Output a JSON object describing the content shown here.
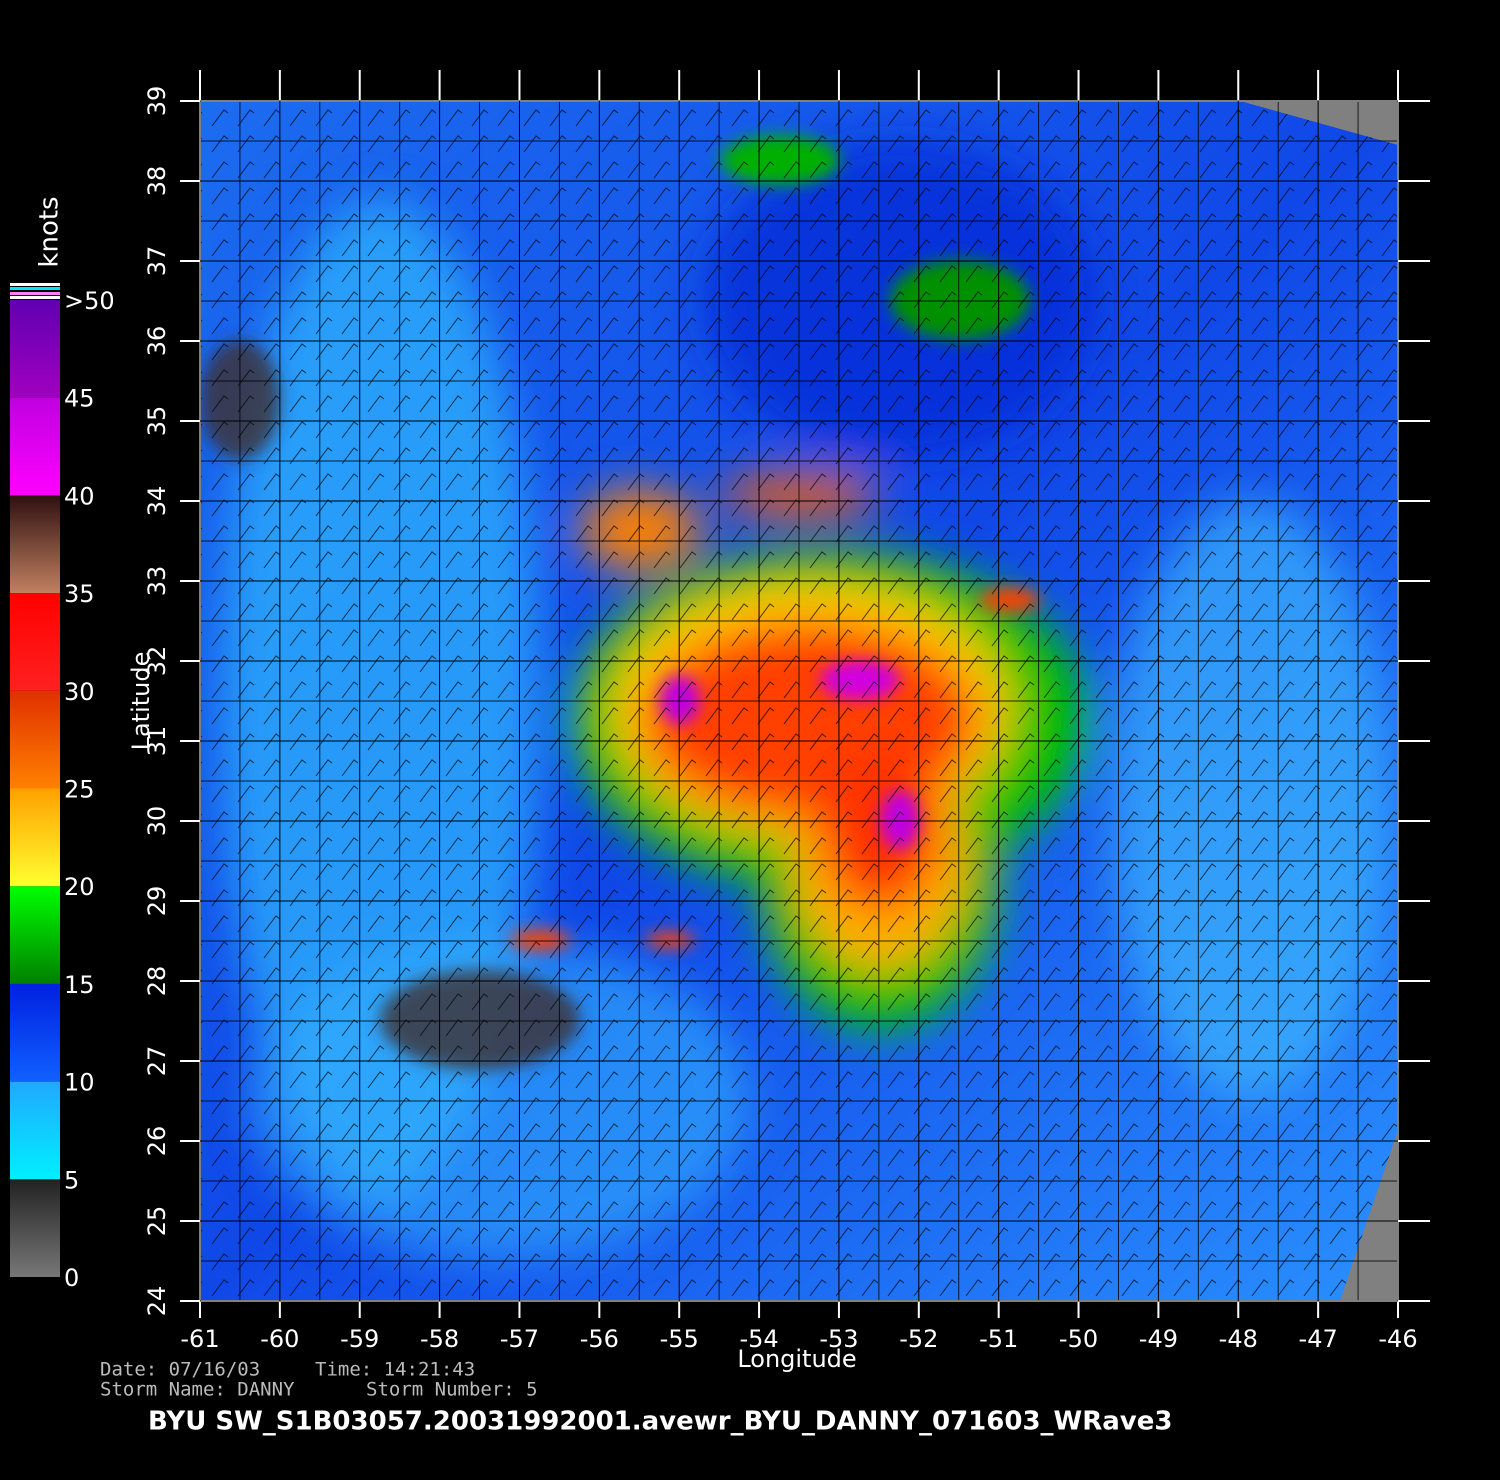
{
  "map": {
    "xlabel": "Longitude",
    "ylabel": "Latitude",
    "xlim": [
      -61,
      -46
    ],
    "ylim": [
      24,
      39
    ],
    "xticks": [
      -61,
      -60,
      -59,
      -58,
      -57,
      -56,
      -55,
      -54,
      -53,
      -52,
      -51,
      -50,
      -49,
      -48,
      -47,
      -46
    ],
    "yticks": [
      24,
      25,
      26,
      27,
      28,
      29,
      30,
      31,
      32,
      33,
      34,
      35,
      36,
      37,
      38,
      39
    ]
  },
  "colorbar": {
    "title": "knots",
    "ticks": [
      0,
      5,
      10,
      15,
      20,
      25,
      30,
      35,
      40,
      45,
      {
        "value": 50,
        "label": ">50"
      }
    ],
    "colors": [
      [
        "#777777",
        "#222222"
      ],
      [
        "#00f0ff",
        "#20a8ff"
      ],
      [
        "#1060ff",
        "#0020e0"
      ],
      [
        "#008000",
        "#00ff00"
      ],
      [
        "#ffff30",
        "#ffa000"
      ],
      [
        "#ff8000",
        "#e03000"
      ],
      [
        "#ff2020",
        "#ff0000"
      ],
      [
        "#c08060",
        "#301010"
      ],
      [
        "#ff00ff",
        "#c000e0"
      ],
      [
        "#a000c0",
        "#6000b0"
      ]
    ]
  },
  "info": {
    "date": "Date: 07/16/03",
    "time": "Time: 14:21:43",
    "storm_name": "Storm Name: DANNY",
    "storm_number": "Storm Number: 5",
    "title": "BYU SW_S1B03057.20031992001.avewr_BYU_DANNY_071603_WRave3"
  }
}
